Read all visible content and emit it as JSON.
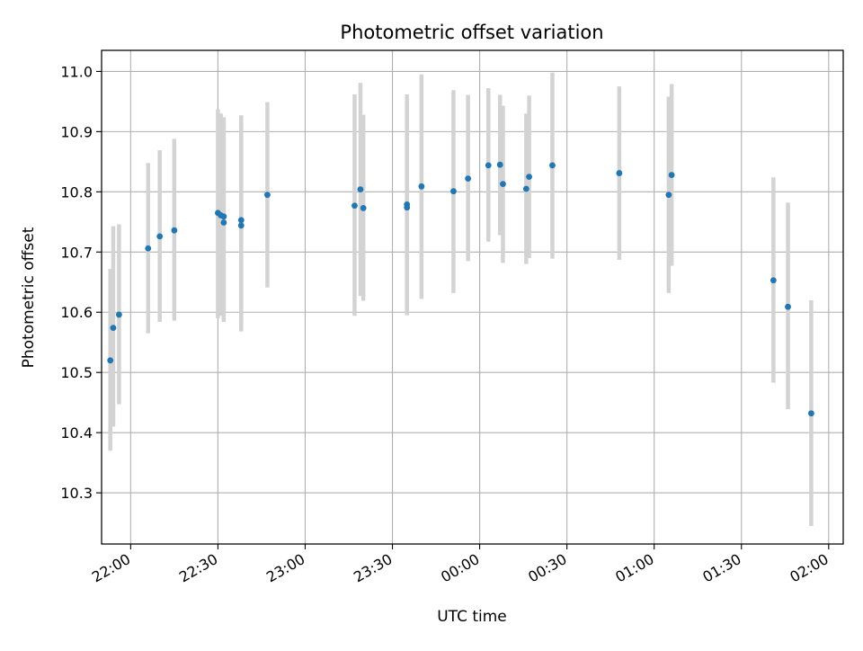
{
  "chart_data": {
    "type": "scatter",
    "title": "Photometric offset variation",
    "xlabel": "UTC time",
    "ylabel": "Photometric offset",
    "xlim": [
      "21:50",
      "02:05"
    ],
    "ylim": [
      10.215,
      11.035
    ],
    "grid": true,
    "x_tick_labels": [
      "22:00",
      "22:30",
      "23:00",
      "23:30",
      "00:00",
      "00:30",
      "01:00",
      "01:30",
      "02:00"
    ],
    "y_tick_labels": [
      "10.3",
      "10.4",
      "10.5",
      "10.6",
      "10.7",
      "10.8",
      "10.9",
      "11.0"
    ],
    "colors": {
      "point": "#1f77b4",
      "errorbar": "#d3d3d3",
      "grid": "#b0b0b0"
    },
    "points": [
      {
        "time": "21:53",
        "y": 10.52,
        "lo": 10.37,
        "hi": 10.672
      },
      {
        "time": "21:54",
        "y": 10.574,
        "lo": 10.41,
        "hi": 10.743
      },
      {
        "time": "21:56",
        "y": 10.596,
        "lo": 10.447,
        "hi": 10.746
      },
      {
        "time": "22:06",
        "y": 10.706,
        "lo": 10.565,
        "hi": 10.848
      },
      {
        "time": "22:10",
        "y": 10.726,
        "lo": 10.584,
        "hi": 10.869
      },
      {
        "time": "22:15",
        "y": 10.736,
        "lo": 10.586,
        "hi": 10.888
      },
      {
        "time": "22:30",
        "y": 10.765,
        "lo": 10.59,
        "hi": 10.937
      },
      {
        "time": "22:31",
        "y": 10.761,
        "lo": 10.594,
        "hi": 10.93
      },
      {
        "time": "22:32",
        "y": 10.749,
        "lo": 10.584,
        "hi": 10.924
      },
      {
        "time": "22:32",
        "y": 10.759,
        "lo": 10.601,
        "hi": 10.917
      },
      {
        "time": "22:38",
        "y": 10.744,
        "lo": 10.568,
        "hi": 10.92
      },
      {
        "time": "22:38",
        "y": 10.753,
        "lo": 10.58,
        "hi": 10.927
      },
      {
        "time": "22:47",
        "y": 10.795,
        "lo": 10.641,
        "hi": 10.949
      },
      {
        "time": "23:17",
        "y": 10.777,
        "lo": 10.594,
        "hi": 10.962
      },
      {
        "time": "23:19",
        "y": 10.804,
        "lo": 10.627,
        "hi": 10.981
      },
      {
        "time": "23:20",
        "y": 10.773,
        "lo": 10.619,
        "hi": 10.928
      },
      {
        "time": "23:35",
        "y": 10.779,
        "lo": 10.595,
        "hi": 10.962
      },
      {
        "time": "23:35",
        "y": 10.774,
        "lo": 10.598,
        "hi": 10.95
      },
      {
        "time": "23:40",
        "y": 10.809,
        "lo": 10.622,
        "hi": 10.995
      },
      {
        "time": "23:51",
        "y": 10.801,
        "lo": 10.632,
        "hi": 10.969
      },
      {
        "time": "23:56",
        "y": 10.822,
        "lo": 10.685,
        "hi": 10.961
      },
      {
        "time": "00:03",
        "y": 10.844,
        "lo": 10.717,
        "hi": 10.972
      },
      {
        "time": "00:07",
        "y": 10.845,
        "lo": 10.728,
        "hi": 10.961
      },
      {
        "time": "00:08",
        "y": 10.813,
        "lo": 10.682,
        "hi": 10.943
      },
      {
        "time": "00:16",
        "y": 10.805,
        "lo": 10.68,
        "hi": 10.93
      },
      {
        "time": "00:17",
        "y": 10.825,
        "lo": 10.69,
        "hi": 10.96
      },
      {
        "time": "00:25",
        "y": 10.844,
        "lo": 10.689,
        "hi": 10.998
      },
      {
        "time": "00:48",
        "y": 10.831,
        "lo": 10.687,
        "hi": 10.975
      },
      {
        "time": "01:05",
        "y": 10.795,
        "lo": 10.632,
        "hi": 10.958
      },
      {
        "time": "01:06",
        "y": 10.828,
        "lo": 10.677,
        "hi": 10.979
      },
      {
        "time": "01:41",
        "y": 10.653,
        "lo": 10.483,
        "hi": 10.824
      },
      {
        "time": "01:46",
        "y": 10.609,
        "lo": 10.439,
        "hi": 10.782
      },
      {
        "time": "01:54",
        "y": 10.432,
        "lo": 10.245,
        "hi": 10.62
      }
    ]
  }
}
